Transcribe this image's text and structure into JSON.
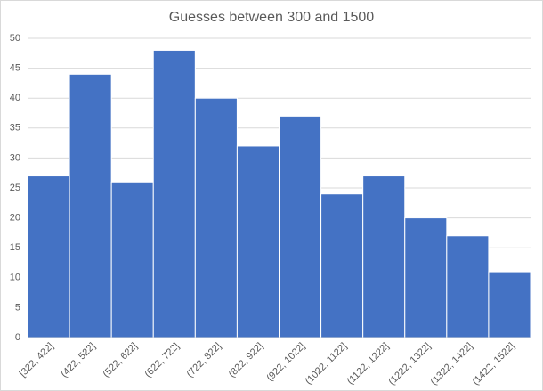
{
  "chart_data": {
    "type": "bar",
    "title": "Guesses between 300 and 1500",
    "categories": [
      "[322, 422]",
      "(422, 522]",
      "(522, 622]",
      "(622, 722]",
      "(722, 822]",
      "(822, 922]",
      "(922, 1022]",
      "(1022, 1122]",
      "(1122, 1222]",
      "(1222, 1322]",
      "(1322, 1422]",
      "(1422, 1522]"
    ],
    "values": [
      27,
      44,
      26,
      48,
      40,
      32,
      37,
      24,
      27,
      20,
      17,
      11
    ],
    "color": "#4472c4",
    "ylim": [
      0,
      50
    ],
    "yticks": [
      0,
      5,
      10,
      15,
      20,
      25,
      30,
      35,
      40,
      45,
      50
    ],
    "grid": true
  }
}
